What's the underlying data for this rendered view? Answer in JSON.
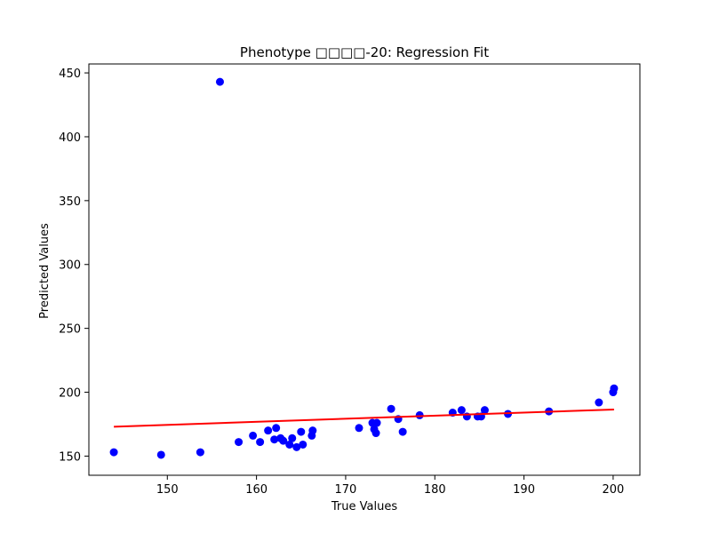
{
  "chart_data": {
    "type": "scatter",
    "title": "Phenotype □□□□-20: Regression Fit",
    "xlabel": "True Values",
    "ylabel": "Predicted Values",
    "xlim": [
      141.2,
      203.0
    ],
    "ylim": [
      135.0,
      457.0
    ],
    "xticks": [
      150,
      160,
      170,
      180,
      190,
      200
    ],
    "yticks": [
      150,
      200,
      250,
      300,
      350,
      400,
      450
    ],
    "grid": false,
    "colors": {
      "points": "#0000ff",
      "fit_line": "#ff0000"
    },
    "points": {
      "x": [
        144.0,
        149.3,
        153.7,
        155.9,
        158.0,
        159.6,
        160.4,
        161.3,
        162.0,
        162.2,
        162.7,
        163.0,
        163.7,
        164.0,
        164.5,
        165.0,
        165.2,
        166.2,
        166.3,
        171.5,
        173.0,
        173.2,
        173.4,
        173.5,
        175.1,
        175.9,
        176.4,
        178.3,
        182.0,
        183.0,
        183.6,
        184.8,
        185.2,
        185.6,
        188.2,
        192.8,
        198.4,
        200.0,
        200.1
      ],
      "y": [
        153.0,
        151.0,
        153.0,
        443.0,
        161.0,
        166.0,
        161.0,
        170.0,
        163.0,
        172.0,
        164.0,
        162.0,
        159.0,
        164.0,
        157.0,
        169.0,
        159.0,
        166.0,
        170.0,
        172.0,
        176.0,
        171.0,
        168.0,
        176.0,
        187.0,
        179.0,
        169.0,
        182.0,
        184.0,
        186.0,
        181.0,
        181.0,
        181.0,
        186.0,
        183.0,
        185.0,
        192.0,
        200.0,
        203.0
      ]
    },
    "fit_line": {
      "x": [
        144.0,
        200.1
      ],
      "y": [
        173.0,
        186.5
      ]
    }
  }
}
